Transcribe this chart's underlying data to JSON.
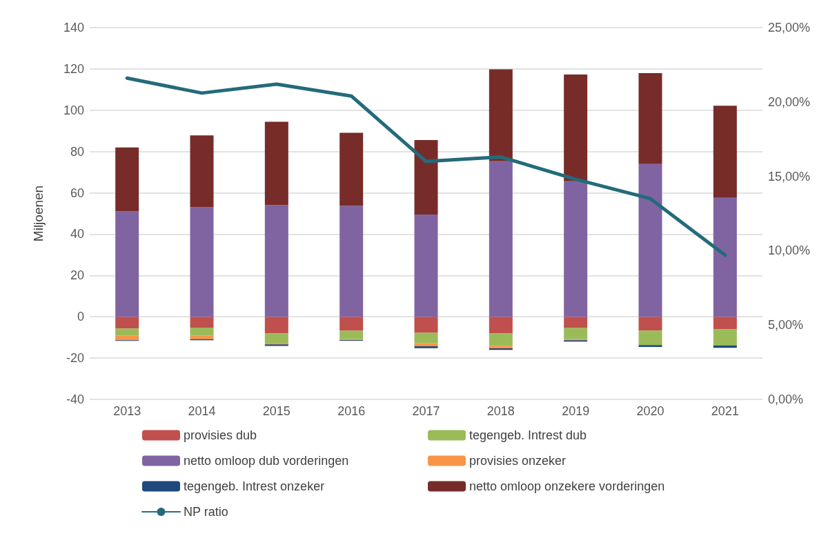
{
  "chart_data": {
    "type": "bar",
    "stacked": true,
    "ylabel": "Miljoenen",
    "categories": [
      "2013",
      "2014",
      "2015",
      "2016",
      "2017",
      "2018",
      "2019",
      "2020",
      "2021"
    ],
    "series": [
      {
        "name": "provisies dub",
        "color": "#c0504d",
        "values": [
          -5.7,
          -5.3,
          -8.1,
          -6.8,
          -7.8,
          -8.1,
          -5.3,
          -6.7,
          -6.1
        ]
      },
      {
        "name": "tegengeb. Intrest dub",
        "color": "#9bbb59",
        "values": [
          -3.5,
          -3.9,
          -4.5,
          -4.1,
          -4.9,
          -5.9,
          -5.6,
          -7.0,
          -7.8
        ]
      },
      {
        "name": "netto omloop dub vorderingen",
        "color": "#8064a2",
        "values": [
          51.0,
          53.0,
          54.0,
          53.7,
          49.5,
          75.3,
          65.6,
          74.0,
          57.6
        ]
      },
      {
        "name": "provisies onzeker",
        "color": "#f79646",
        "values": [
          -2.2,
          -1.7,
          -0.8,
          -0.4,
          -1.6,
          -1.3,
          -0.5,
          0,
          0
        ]
      },
      {
        "name": "tegengeb. Intrest onzeker",
        "color": "#1f497d",
        "values": [
          -0.3,
          -0.5,
          -0.7,
          -0.3,
          -0.9,
          -0.7,
          -0.6,
          -0.9,
          -1.1
        ]
      },
      {
        "name": "netto omloop onzekere vorderingen",
        "color": "#772c2a",
        "values": [
          31.0,
          34.8,
          40.4,
          35.4,
          36.1,
          44.5,
          51.7,
          44.0,
          44.6
        ]
      },
      {
        "name": "NP ratio",
        "type": "line",
        "axis": "y2",
        "color": "#236b7a",
        "values": [
          21.6,
          20.6,
          21.2,
          20.4,
          16.0,
          16.3,
          14.8,
          13.5,
          9.7
        ]
      }
    ],
    "ylim": [
      -40,
      140
    ],
    "yticks": [
      -40,
      -20,
      0,
      20,
      40,
      60,
      80,
      100,
      120,
      140
    ],
    "y2lim": [
      0,
      25
    ],
    "y2ticks": [
      {
        "value": 0,
        "label": "0,00%"
      },
      {
        "value": 5,
        "label": "5,00%"
      },
      {
        "value": 10,
        "label": "10,00%"
      },
      {
        "value": 15,
        "label": "15,00%"
      },
      {
        "value": 20,
        "label": "20,00%"
      },
      {
        "value": 25,
        "label": "25,00%"
      }
    ],
    "grid": "y",
    "legend": "bottom",
    "marker": "none",
    "line_style": "solid"
  }
}
